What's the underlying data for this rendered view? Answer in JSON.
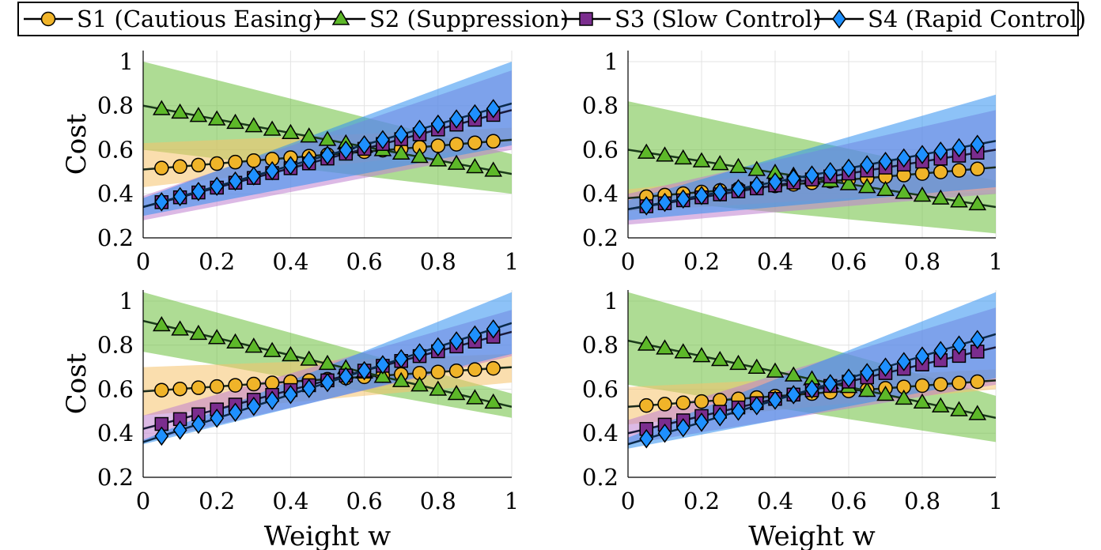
{
  "legend": {
    "entries": [
      {
        "label": "S1 (Cautious Easing)",
        "marker": "circle",
        "color": "#f0b429"
      },
      {
        "label": "S2 (Suppression)",
        "marker": "triangle",
        "color": "#5db829"
      },
      {
        "label": "S3 (Slow Control)",
        "marker": "square",
        "color": "#7b2d8e"
      },
      {
        "label": "S4 (Rapid Control)",
        "marker": "diamond",
        "color": "#1e90ff"
      }
    ]
  },
  "colors": {
    "S1": {
      "marker": "#f0b429",
      "band": "#f5c26b",
      "line": "#1a2a1a"
    },
    "S2": {
      "marker": "#5db829",
      "band": "#6cbf3c",
      "line": "#1a3a1a"
    },
    "S3": {
      "marker": "#7b2d8e",
      "band": "#c080d0",
      "line": "#1a1a3a"
    },
    "S4": {
      "marker": "#1e90ff",
      "band": "#2f8ff0",
      "line": "#0a2a4a"
    }
  },
  "chart_data": [
    {
      "type": "line",
      "panel": "top-left",
      "xlabel": "",
      "ylabel": "Cost",
      "xlim": [
        0,
        1
      ],
      "ylim": [
        0.2,
        1.05
      ],
      "xticks": [
        "0",
        "0.2",
        "0.4",
        "0.6",
        "0.8",
        "1"
      ],
      "yticks": [
        "0.2",
        "0.4",
        "0.6",
        "0.8",
        "1"
      ],
      "grid": true,
      "series": [
        {
          "name": "S1 (Cautious Easing)",
          "line": [
            [
              0,
              0.51
            ],
            [
              1,
              0.645
            ]
          ],
          "band_lo": [
            [
              0,
              0.43
            ],
            [
              1,
              0.62
            ]
          ],
          "band_hi": [
            [
              0,
              0.63
            ],
            [
              1,
              0.7
            ]
          ]
        },
        {
          "name": "S2 (Suppression)",
          "line": [
            [
              0,
              0.8
            ],
            [
              1,
              0.49
            ]
          ],
          "band_lo": [
            [
              0,
              0.6
            ],
            [
              1,
              0.4
            ]
          ],
          "band_hi": [
            [
              0,
              1.0
            ],
            [
              1,
              0.58
            ]
          ]
        },
        {
          "name": "S3 (Slow Control)",
          "line": [
            [
              0,
              0.34
            ],
            [
              1,
              0.78
            ]
          ],
          "band_lo": [
            [
              0,
              0.28
            ],
            [
              1,
              0.6
            ]
          ],
          "band_hi": [
            [
              0,
              0.39
            ],
            [
              1,
              0.96
            ]
          ]
        },
        {
          "name": "S4 (Rapid Control)",
          "line": [
            [
              0,
              0.34
            ],
            [
              1,
              0.81
            ]
          ],
          "band_lo": [
            [
              0,
              0.3
            ],
            [
              1,
              0.62
            ]
          ],
          "band_hi": [
            [
              0,
              0.38
            ],
            [
              1,
              1.0
            ]
          ]
        }
      ]
    },
    {
      "type": "line",
      "panel": "top-right",
      "xlabel": "",
      "ylabel": "",
      "xlim": [
        0,
        1
      ],
      "ylim": [
        0.2,
        1.05
      ],
      "xticks": [
        "0",
        "0.2",
        "0.4",
        "0.6",
        "0.8",
        "1"
      ],
      "yticks": [
        "0.2",
        "0.4",
        "0.6",
        "0.8",
        "1"
      ],
      "grid": true,
      "series": [
        {
          "name": "S1 (Cautious Easing)",
          "line": [
            [
              0,
              0.38
            ],
            [
              1,
              0.52
            ]
          ],
          "band_lo": [
            [
              0,
              0.32
            ],
            [
              1,
              0.42
            ]
          ],
          "band_hi": [
            [
              0,
              0.42
            ],
            [
              1,
              0.6
            ]
          ]
        },
        {
          "name": "S2 (Suppression)",
          "line": [
            [
              0,
              0.6
            ],
            [
              1,
              0.34
            ]
          ],
          "band_lo": [
            [
              0,
              0.38
            ],
            [
              1,
              0.22
            ]
          ],
          "band_hi": [
            [
              0,
              0.82
            ],
            [
              1,
              0.46
            ]
          ]
        },
        {
          "name": "S3 (Slow Control)",
          "line": [
            [
              0,
              0.33
            ],
            [
              1,
              0.6
            ]
          ],
          "band_lo": [
            [
              0,
              0.26
            ],
            [
              1,
              0.4
            ]
          ],
          "band_hi": [
            [
              0,
              0.4
            ],
            [
              1,
              0.78
            ]
          ]
        },
        {
          "name": "S4 (Rapid Control)",
          "line": [
            [
              0,
              0.33
            ],
            [
              1,
              0.64
            ]
          ],
          "band_lo": [
            [
              0,
              0.28
            ],
            [
              1,
              0.43
            ]
          ],
          "band_hi": [
            [
              0,
              0.37
            ],
            [
              1,
              0.85
            ]
          ]
        }
      ]
    },
    {
      "type": "line",
      "panel": "bottom-left",
      "xlabel": "Weight w",
      "ylabel": "Cost",
      "xlim": [
        0,
        1
      ],
      "ylim": [
        0.2,
        1.05
      ],
      "xticks": [
        "0",
        "0.2",
        "0.4",
        "0.6",
        "0.8",
        "1"
      ],
      "yticks": [
        "0.2",
        "0.4",
        "0.6",
        "0.8",
        "1"
      ],
      "grid": true,
      "series": [
        {
          "name": "S1 (Cautious Easing)",
          "line": [
            [
              0,
              0.59
            ],
            [
              1,
              0.7
            ]
          ],
          "band_lo": [
            [
              0,
              0.48
            ],
            [
              1,
              0.63
            ]
          ],
          "band_hi": [
            [
              0,
              0.7
            ],
            [
              1,
              0.76
            ]
          ]
        },
        {
          "name": "S2 (Suppression)",
          "line": [
            [
              0,
              0.91
            ],
            [
              1,
              0.52
            ]
          ],
          "band_lo": [
            [
              0,
              0.77
            ],
            [
              1,
              0.47
            ]
          ],
          "band_hi": [
            [
              0,
              1.04
            ],
            [
              1,
              0.58
            ]
          ]
        },
        {
          "name": "S3 (Slow Control)",
          "line": [
            [
              0,
              0.42
            ],
            [
              1,
              0.86
            ]
          ],
          "band_lo": [
            [
              0,
              0.36
            ],
            [
              1,
              0.75
            ]
          ],
          "band_hi": [
            [
              0,
              0.48
            ],
            [
              1,
              0.96
            ]
          ]
        },
        {
          "name": "S4 (Rapid Control)",
          "line": [
            [
              0,
              0.36
            ],
            [
              1,
              0.9
            ]
          ],
          "band_lo": [
            [
              0,
              0.35
            ],
            [
              1,
              0.76
            ]
          ],
          "band_hi": [
            [
              0,
              0.37
            ],
            [
              1,
              1.04
            ]
          ]
        }
      ]
    },
    {
      "type": "line",
      "panel": "bottom-right",
      "xlabel": "Weight w",
      "ylabel": "",
      "xlim": [
        0,
        1
      ],
      "ylim": [
        0.2,
        1.05
      ],
      "xticks": [
        "0",
        "0.2",
        "0.4",
        "0.6",
        "0.8",
        "1"
      ],
      "yticks": [
        "0.2",
        "0.4",
        "0.6",
        "0.8",
        "1"
      ],
      "grid": true,
      "series": [
        {
          "name": "S1 (Cautious Easing)",
          "line": [
            [
              0,
              0.52
            ],
            [
              1,
              0.64
            ]
          ],
          "band_lo": [
            [
              0,
              0.44
            ],
            [
              1,
              0.6
            ]
          ],
          "band_hi": [
            [
              0,
              0.61
            ],
            [
              1,
              0.69
            ]
          ]
        },
        {
          "name": "S2 (Suppression)",
          "line": [
            [
              0,
              0.82
            ],
            [
              1,
              0.47
            ]
          ],
          "band_lo": [
            [
              0,
              0.62
            ],
            [
              1,
              0.36
            ]
          ],
          "band_hi": [
            [
              0,
              1.04
            ],
            [
              1,
              0.57
            ]
          ]
        },
        {
          "name": "S3 (Slow Control)",
          "line": [
            [
              0,
              0.4
            ],
            [
              1,
              0.79
            ]
          ],
          "band_lo": [
            [
              0,
              0.35
            ],
            [
              1,
              0.62
            ]
          ],
          "band_hi": [
            [
              0,
              0.46
            ],
            [
              1,
              0.97
            ]
          ]
        },
        {
          "name": "S4 (Rapid Control)",
          "line": [
            [
              0,
              0.35
            ],
            [
              1,
              0.85
            ]
          ],
          "band_lo": [
            [
              0,
              0.33
            ],
            [
              1,
              0.65
            ]
          ],
          "band_hi": [
            [
              0,
              0.38
            ],
            [
              1,
              1.04
            ]
          ]
        }
      ]
    }
  ]
}
